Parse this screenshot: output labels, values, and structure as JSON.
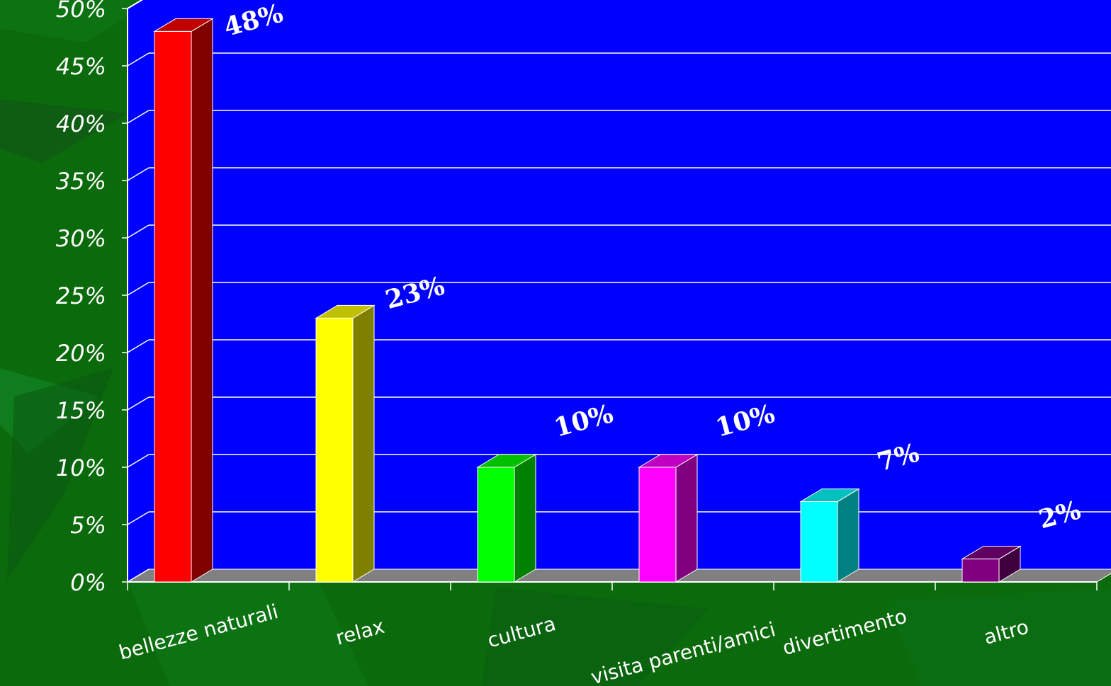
{
  "chart_data": {
    "type": "bar",
    "title": "",
    "xlabel": "",
    "ylabel": "",
    "categories": [
      "bellezze naturali",
      "relax",
      "cultura",
      "visita parenti/amici",
      "divertimento",
      "altro"
    ],
    "values": [
      48,
      23,
      10,
      10,
      7,
      2
    ],
    "data_labels": [
      "48%",
      "23%",
      "10%",
      "10%",
      "7%",
      "2%"
    ],
    "ylim": [
      0,
      50
    ],
    "yticks": [
      0,
      5,
      10,
      15,
      20,
      25,
      30,
      35,
      40,
      45,
      50
    ],
    "ytick_labels": [
      "0%",
      "5%",
      "10%",
      "15%",
      "20%",
      "25%",
      "30%",
      "35%",
      "40%",
      "45%",
      "50%"
    ],
    "grid": true,
    "legend": "none",
    "style": "3d-column",
    "colors": {
      "plot_wall": "#0000ff",
      "floor": "#808080",
      "grid": "#ffffff",
      "page_background": "#0b6a0b",
      "bars": [
        {
          "front": "#ff0000",
          "side": "#800000",
          "top": "#c00000"
        },
        {
          "front": "#ffff00",
          "side": "#808000",
          "top": "#c0c000"
        },
        {
          "front": "#00ff00",
          "side": "#008000",
          "top": "#00c000"
        },
        {
          "front": "#ff00ff",
          "side": "#800080",
          "top": "#c000c0"
        },
        {
          "front": "#00ffff",
          "side": "#008080",
          "top": "#00c0c0"
        },
        {
          "front": "#800080",
          "side": "#400040",
          "top": "#600060"
        }
      ]
    }
  }
}
